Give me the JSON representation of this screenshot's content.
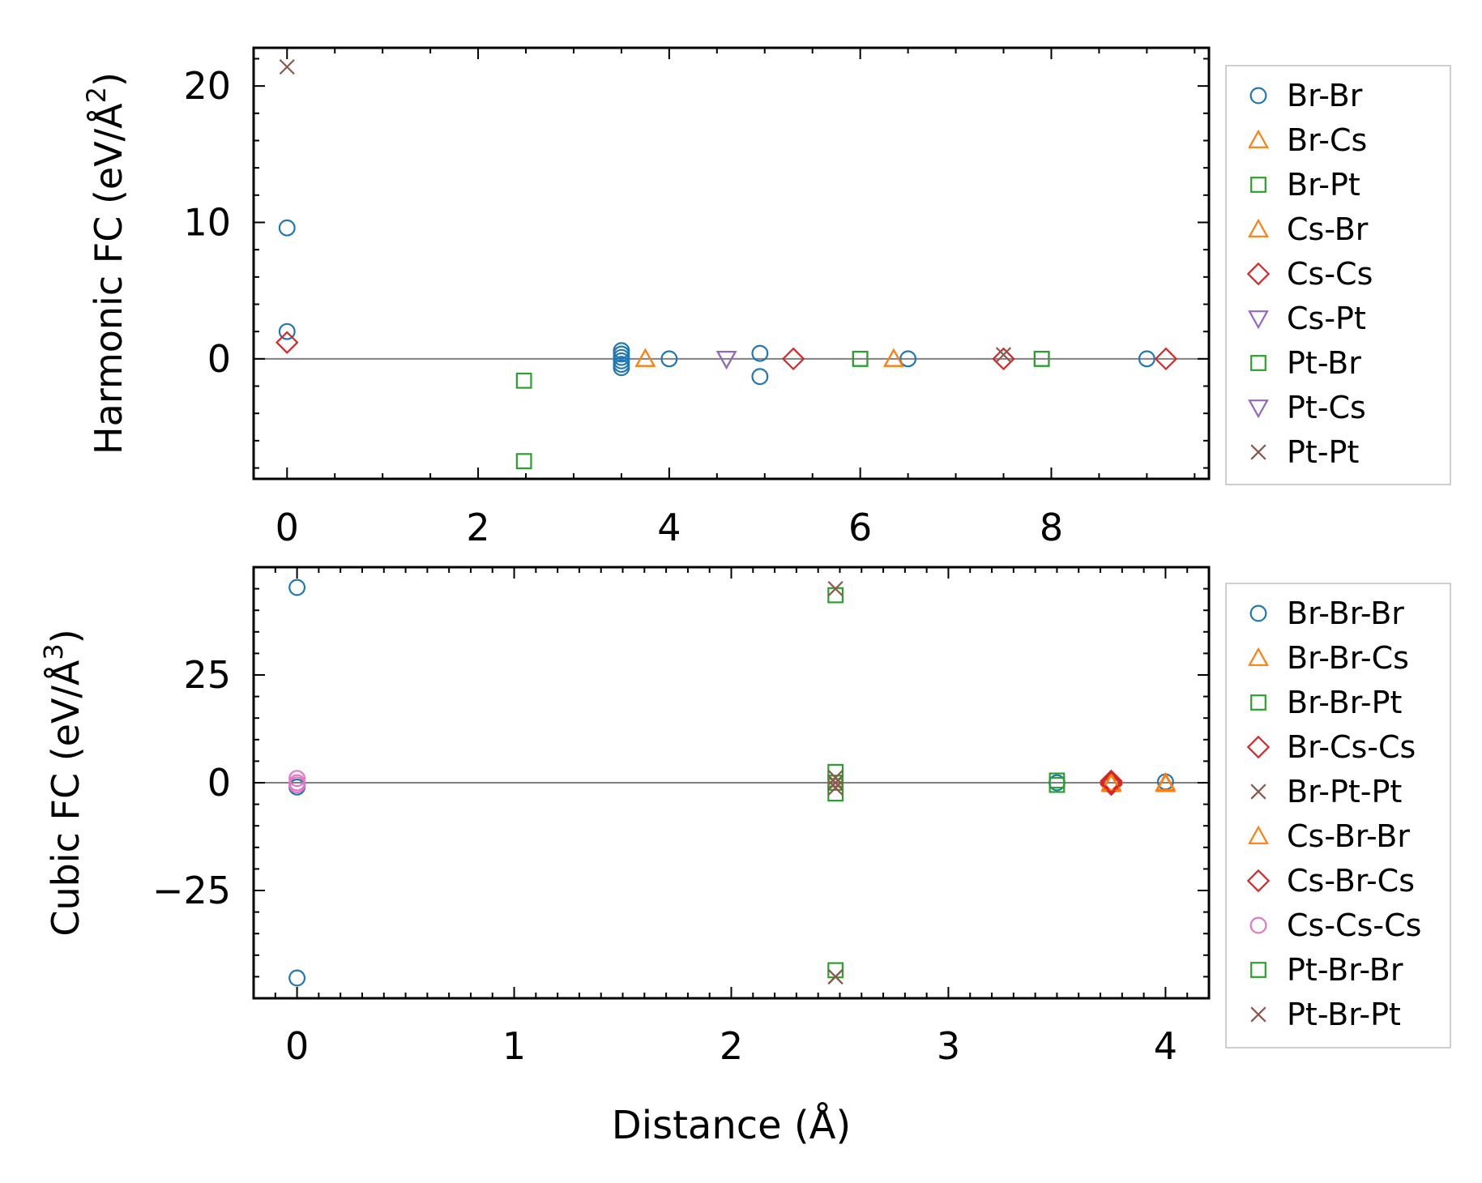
{
  "chart_data": [
    {
      "type": "scatter",
      "ylabel": "Harmonic FC (eV/Å²)",
      "ylabel_main": "Harmonic FC (eV/Å",
      "ylabel_sup": "2",
      "ylabel_end": ")",
      "xlabel": "",
      "xlim": [
        -0.35,
        9.65
      ],
      "ylim": [
        -8.8,
        22.8
      ],
      "xticks": [
        0,
        2,
        4,
        6,
        8
      ],
      "yticks": [
        0,
        10,
        20
      ],
      "grid": false,
      "legend_position": "outside-right",
      "series": [
        {
          "name": "Br-Br",
          "marker": "circle",
          "color": "#1f77b4",
          "points": [
            [
              0,
              9.6
            ],
            [
              0,
              2.0
            ],
            [
              3.5,
              0.6
            ],
            [
              3.5,
              0.35
            ],
            [
              3.5,
              0.1
            ],
            [
              3.5,
              -0.15
            ],
            [
              3.5,
              -0.4
            ],
            [
              3.5,
              -0.65
            ],
            [
              4.0,
              0.0
            ],
            [
              4.95,
              0.4
            ],
            [
              4.95,
              -1.3
            ],
            [
              6.5,
              0.0
            ],
            [
              9.0,
              0.0
            ]
          ]
        },
        {
          "name": "Br-Cs",
          "marker": "triangle-up",
          "color": "#ff7f0e",
          "points": [
            [
              3.75,
              0.0
            ],
            [
              6.35,
              0.0
            ]
          ]
        },
        {
          "name": "Br-Pt",
          "marker": "square",
          "color": "#2ca02c",
          "points": [
            [
              2.48,
              -1.6
            ],
            [
              2.48,
              -7.5
            ],
            [
              6.0,
              0.0
            ],
            [
              7.9,
              0.0
            ]
          ]
        },
        {
          "name": "Cs-Br",
          "marker": "triangle-up",
          "color": "#ff7f0e",
          "points": [
            [
              3.75,
              0.0
            ],
            [
              6.35,
              0.0
            ]
          ]
        },
        {
          "name": "Cs-Cs",
          "marker": "diamond",
          "color": "#d62728",
          "points": [
            [
              0,
              1.2
            ],
            [
              5.3,
              0.0
            ],
            [
              7.5,
              0.0
            ],
            [
              9.2,
              0.0
            ]
          ]
        },
        {
          "name": "Cs-Pt",
          "marker": "triangle-down",
          "color": "#9467bd",
          "points": [
            [
              4.6,
              0.0
            ]
          ]
        },
        {
          "name": "Pt-Br",
          "marker": "square",
          "color": "#2ca02c",
          "points": [
            [
              6.0,
              0.0
            ],
            [
              7.9,
              0.0
            ]
          ]
        },
        {
          "name": "Pt-Cs",
          "marker": "triangle-down",
          "color": "#9467bd",
          "points": [
            [
              4.6,
              0.0
            ]
          ]
        },
        {
          "name": "Pt-Pt",
          "marker": "x",
          "color": "#8c564b",
          "points": [
            [
              0,
              21.4
            ],
            [
              7.5,
              0.3
            ]
          ]
        }
      ]
    },
    {
      "type": "scatter",
      "ylabel": "Cubic FC (eV/Å³)",
      "ylabel_main": "Cubic FC (eV/Å",
      "ylabel_sup": "3",
      "ylabel_end": ")",
      "xlabel": "Distance (Å)",
      "xlim": [
        -0.2,
        4.2
      ],
      "ylim": [
        -50,
        50
      ],
      "xticks": [
        0,
        1,
        2,
        3,
        4
      ],
      "yticks": [
        -25,
        0,
        25
      ],
      "grid": false,
      "legend_position": "outside-right",
      "series": [
        {
          "name": "Br-Br-Br",
          "marker": "circle",
          "color": "#1f77b4",
          "points": [
            [
              0,
              45.3
            ],
            [
              0,
              -45.3
            ],
            [
              0,
              -1.0
            ],
            [
              3.5,
              0.0
            ],
            [
              4.0,
              0.2
            ]
          ]
        },
        {
          "name": "Br-Br-Cs",
          "marker": "triangle-up",
          "color": "#ff7f0e",
          "points": [
            [
              3.75,
              -0.3
            ],
            [
              4.0,
              -0.3
            ]
          ]
        },
        {
          "name": "Br-Br-Pt",
          "marker": "square",
          "color": "#2ca02c",
          "points": [
            [
              2.48,
              43.5
            ],
            [
              2.48,
              2.5
            ],
            [
              2.48,
              0.0
            ],
            [
              2.48,
              -2.5
            ],
            [
              3.5,
              0.5
            ]
          ]
        },
        {
          "name": "Br-Cs-Cs",
          "marker": "diamond",
          "color": "#d62728",
          "points": [
            [
              3.75,
              0.4
            ],
            [
              3.75,
              -0.4
            ]
          ]
        },
        {
          "name": "Br-Pt-Pt",
          "marker": "x",
          "color": "#8c564b",
          "points": [
            [
              2.48,
              45.0
            ],
            [
              2.48,
              1.2
            ],
            [
              2.48,
              -1.2
            ],
            [
              2.48,
              -45.0
            ]
          ]
        },
        {
          "name": "Cs-Br-Br",
          "marker": "triangle-up",
          "color": "#ff7f0e",
          "points": [
            [
              3.75,
              0.0
            ],
            [
              4.0,
              0.0
            ]
          ]
        },
        {
          "name": "Cs-Br-Cs",
          "marker": "diamond",
          "color": "#d62728",
          "points": [
            [
              3.75,
              0.0
            ]
          ]
        },
        {
          "name": "Cs-Cs-Cs",
          "marker": "circle",
          "color": "#e377c2",
          "points": [
            [
              0,
              1.0
            ],
            [
              0,
              0.0
            ],
            [
              0,
              -0.5
            ]
          ]
        },
        {
          "name": "Pt-Br-Br",
          "marker": "square",
          "color": "#2ca02c",
          "points": [
            [
              2.48,
              -43.5
            ],
            [
              3.5,
              -0.5
            ]
          ]
        },
        {
          "name": "Pt-Br-Pt",
          "marker": "x",
          "color": "#8c564b",
          "points": [
            [
              2.48,
              0.0
            ],
            [
              2.48,
              -45.0
            ]
          ]
        }
      ]
    }
  ]
}
